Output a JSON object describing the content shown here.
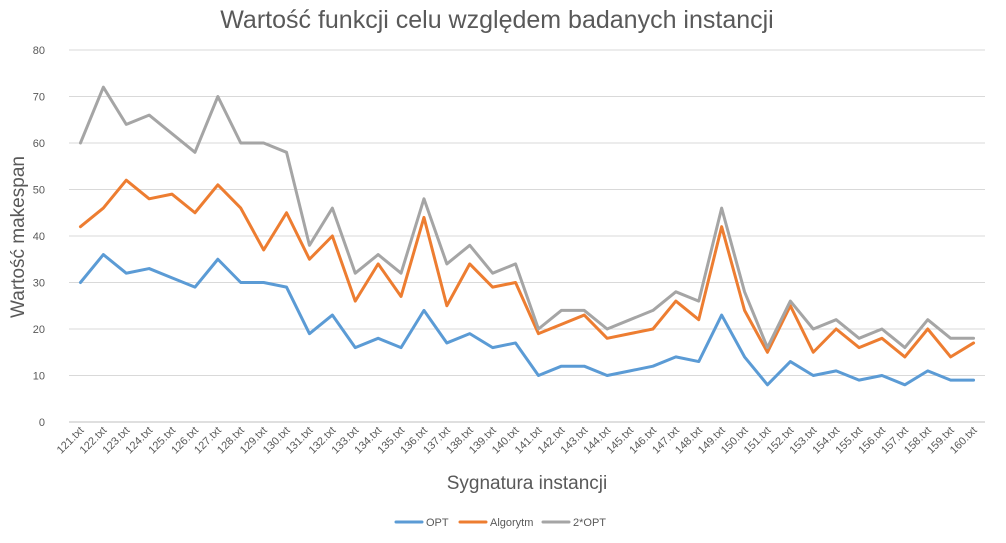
{
  "chart_data": {
    "type": "line",
    "title": "Wartość funkcji celu względem badanych instancji",
    "xlabel": "Sygnatura instancji",
    "ylabel": "Wartość makespan",
    "ylim": [
      0,
      80
    ],
    "yticks": [
      0,
      10,
      20,
      30,
      40,
      50,
      60,
      70,
      80
    ],
    "grid": true,
    "legend_position": "bottom",
    "categories": [
      "121.txt",
      "122.txt",
      "123.txt",
      "124.txt",
      "125.txt",
      "126.txt",
      "127.txt",
      "128.txt",
      "129.txt",
      "130.txt",
      "131.txt",
      "132.txt",
      "133.txt",
      "134.txt",
      "135.txt",
      "136.txt",
      "137.txt",
      "138.txt",
      "139.txt",
      "140.txt",
      "141.txt",
      "142.txt",
      "143.txt",
      "144.txt",
      "145.txt",
      "146.txt",
      "147.txt",
      "148.txt",
      "149.txt",
      "150.txt",
      "151.txt",
      "152.txt",
      "153.txt",
      "154.txt",
      "155.txt",
      "156.txt",
      "157.txt",
      "158.txt",
      "159.txt",
      "160.txt"
    ],
    "series": [
      {
        "name": "OPT",
        "color": "#5B9BD5",
        "values": [
          30,
          36,
          32,
          33,
          31,
          29,
          35,
          30,
          30,
          29,
          19,
          23,
          16,
          18,
          16,
          24,
          17,
          19,
          16,
          17,
          10,
          12,
          12,
          10,
          11,
          12,
          14,
          13,
          23,
          14,
          8,
          13,
          10,
          11,
          9,
          10,
          8,
          11,
          9,
          9
        ]
      },
      {
        "name": "Algorytm",
        "color": "#ED7D31",
        "values": [
          42,
          46,
          52,
          48,
          49,
          45,
          51,
          46,
          37,
          45,
          35,
          40,
          26,
          34,
          27,
          44,
          25,
          34,
          29,
          30,
          19,
          21,
          23,
          18,
          19,
          20,
          26,
          22,
          42,
          24,
          15,
          25,
          15,
          20,
          16,
          18,
          14,
          20,
          14,
          17
        ]
      },
      {
        "name": "2*OPT",
        "color": "#A5A5A5",
        "values": [
          60,
          72,
          64,
          66,
          62,
          58,
          70,
          60,
          60,
          58,
          38,
          46,
          32,
          36,
          32,
          48,
          34,
          38,
          32,
          34,
          20,
          24,
          24,
          20,
          22,
          24,
          28,
          26,
          46,
          28,
          16,
          26,
          20,
          22,
          18,
          20,
          16,
          22,
          18,
          18
        ]
      }
    ]
  }
}
